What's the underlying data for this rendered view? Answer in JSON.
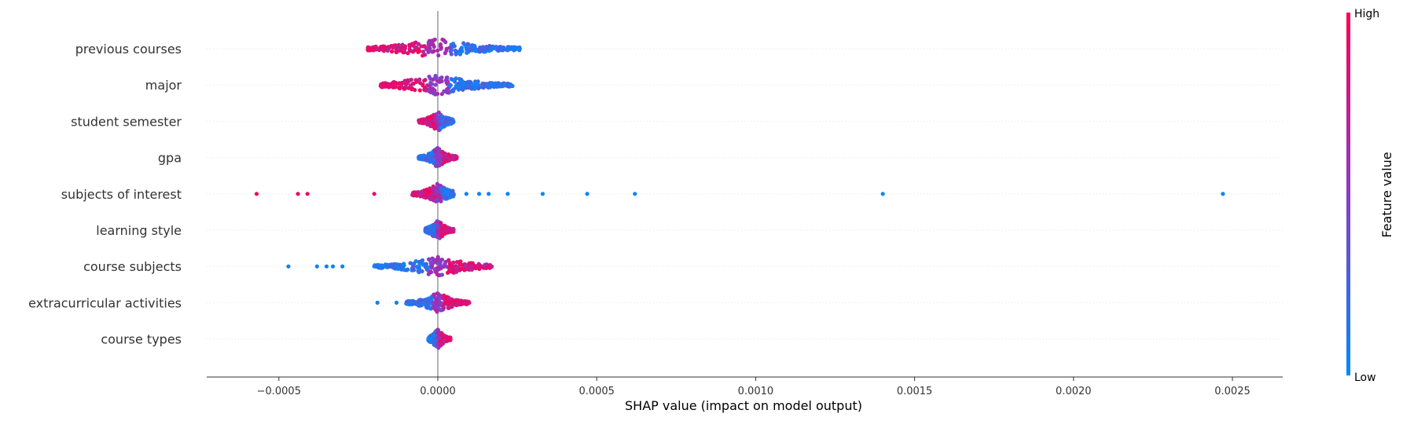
{
  "chart_data": {
    "type": "scatter",
    "subtype": "shap-beeswarm-summary",
    "xlabel": "SHAP value (impact on model output)",
    "xlim": [
      -0.00072,
      0.00263
    ],
    "x_ticks": [
      -0.0005,
      0.0,
      0.0005,
      0.001,
      0.0015,
      0.002,
      0.0025
    ],
    "x_tick_labels": [
      "−0.0005",
      "0.0000",
      "0.0005",
      "0.0010",
      "0.0015",
      "0.0020",
      "0.0025"
    ],
    "zero_line": 0.0,
    "colorbar": {
      "label": "Feature value",
      "high_label": "High",
      "low_label": "Low",
      "high_color": "#ff0052",
      "low_color": "#008bfb"
    },
    "features": [
      {
        "name": "previous courses",
        "range": [
          -0.00022,
          0.00026
        ],
        "hi_side": "negative",
        "density": 5e-05,
        "points": [
          {
            "x": -0.00022,
            "c": 0.95
          },
          {
            "x": -0.00021,
            "c": 0.92
          },
          {
            "x": 0.00022,
            "c": 0.05
          },
          {
            "x": 0.00024,
            "c": 0.03
          },
          {
            "x": 0.00025,
            "c": 0.04
          }
        ]
      },
      {
        "name": "major",
        "range": [
          -0.00018,
          0.00024
        ],
        "hi_side": "negative",
        "density": 4e-05,
        "points": [
          {
            "x": -0.00017,
            "c": 0.95
          },
          {
            "x": -0.00015,
            "c": 0.9
          },
          {
            "x": 0.00021,
            "c": 0.05
          },
          {
            "x": 0.00023,
            "c": 0.04
          }
        ]
      },
      {
        "name": "student semester",
        "range": [
          -6e-05,
          5e-05
        ],
        "hi_side": "negative",
        "density": 3e-05,
        "points": []
      },
      {
        "name": "gpa",
        "range": [
          -6e-05,
          6e-05
        ],
        "hi_side": "positive",
        "density": 2e-05,
        "points": []
      },
      {
        "name": "subjects of interest",
        "range": [
          -8e-05,
          5e-05
        ],
        "hi_side": "negative",
        "density": 2e-05,
        "points": [
          {
            "x": -0.00057,
            "c": 0.95
          },
          {
            "x": -0.00044,
            "c": 0.92
          },
          {
            "x": -0.00041,
            "c": 0.9
          },
          {
            "x": -0.0002,
            "c": 0.9
          },
          {
            "x": 9e-05,
            "c": 0.05
          },
          {
            "x": 0.00013,
            "c": 0.05
          },
          {
            "x": 0.00016,
            "c": 0.05
          },
          {
            "x": 0.00022,
            "c": 0.05
          },
          {
            "x": 0.00033,
            "c": 0.04
          },
          {
            "x": 0.00047,
            "c": 0.04
          },
          {
            "x": 0.00062,
            "c": 0.04
          },
          {
            "x": 0.0014,
            "c": 0.03
          },
          {
            "x": 0.00247,
            "c": 0.03
          }
        ]
      },
      {
        "name": "learning style",
        "range": [
          -4e-05,
          5e-05
        ],
        "hi_side": "positive",
        "density": 2e-05,
        "points": []
      },
      {
        "name": "course subjects",
        "range": [
          -0.0002,
          0.00017
        ],
        "hi_side": "positive",
        "density": 3e-05,
        "points": [
          {
            "x": -0.00047,
            "c": 0.05
          },
          {
            "x": -0.00038,
            "c": 0.06
          },
          {
            "x": -0.00035,
            "c": 0.05
          },
          {
            "x": -0.00033,
            "c": 0.05
          },
          {
            "x": -0.0003,
            "c": 0.05
          },
          {
            "x": -0.0002,
            "c": 0.06
          },
          {
            "x": -0.00018,
            "c": 0.05
          }
        ]
      },
      {
        "name": "extracurricular activities",
        "range": [
          -0.0001,
          0.0001
        ],
        "hi_side": "positive",
        "density": 2e-05,
        "points": [
          {
            "x": -0.00019,
            "c": 0.05
          },
          {
            "x": -0.00013,
            "c": 0.05
          }
        ]
      },
      {
        "name": "course types",
        "range": [
          -3e-05,
          4e-05
        ],
        "hi_side": "positive",
        "density": 1e-05,
        "points": []
      }
    ]
  }
}
